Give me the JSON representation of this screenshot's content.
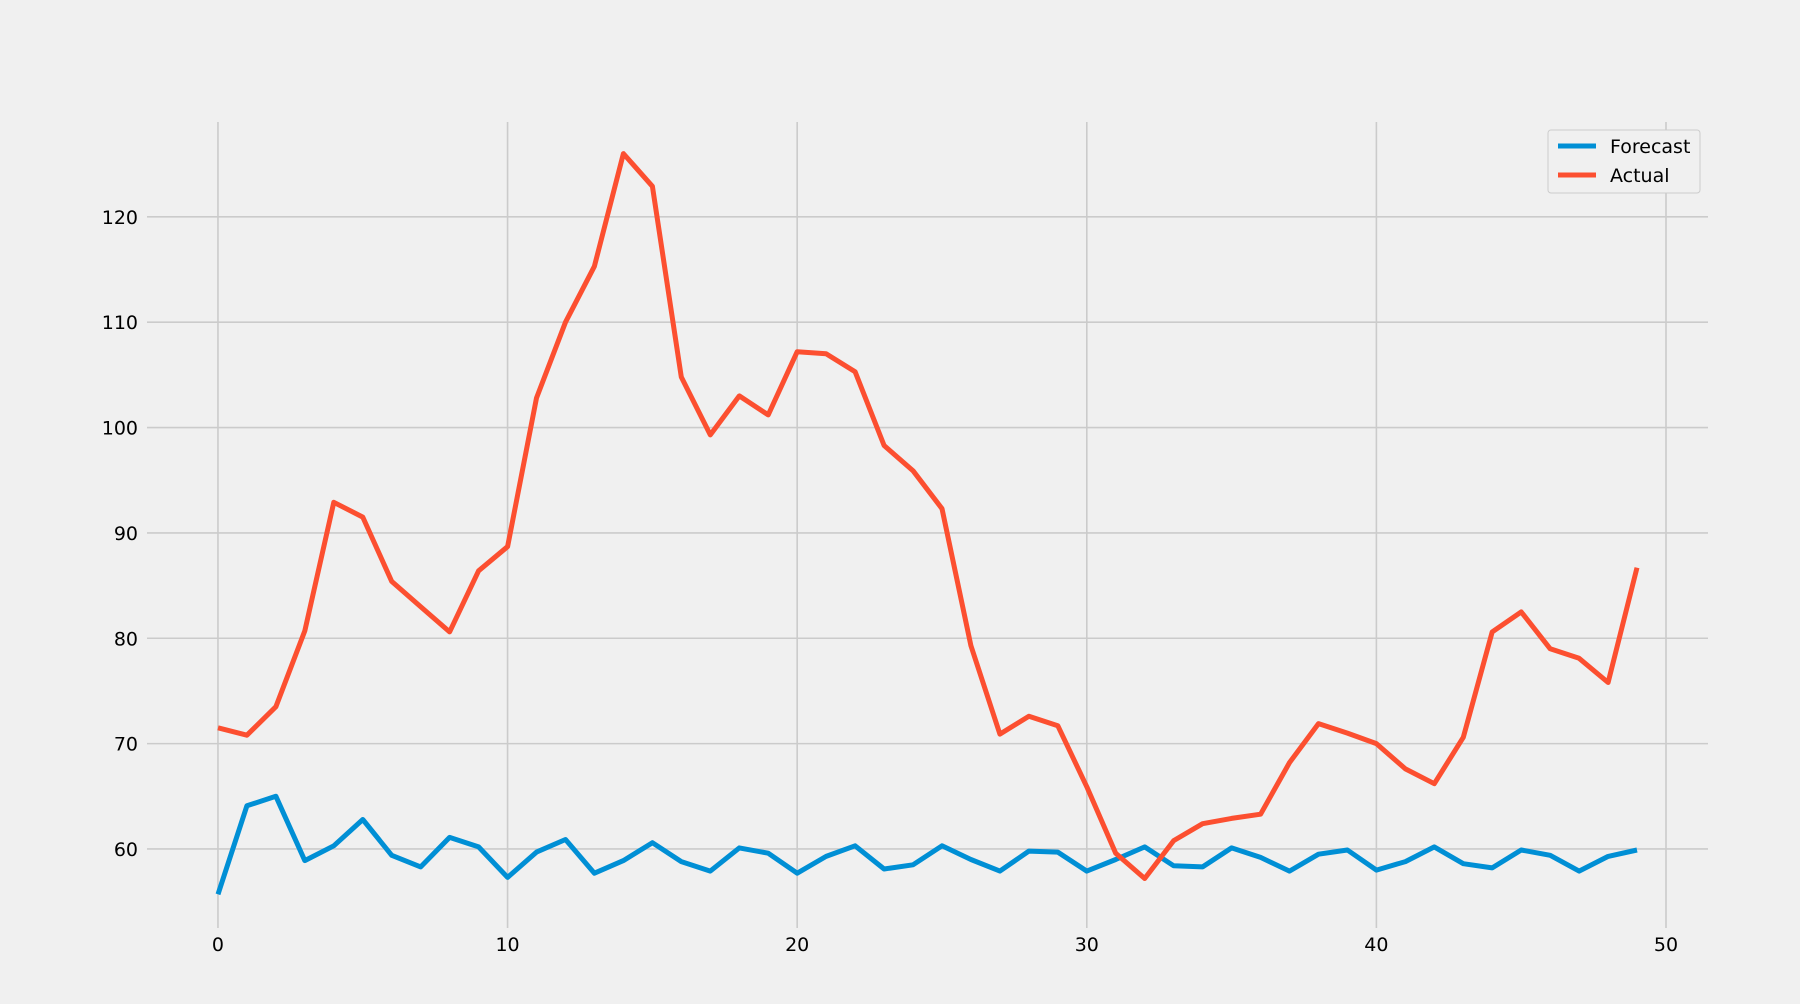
{
  "chart_data": {
    "type": "line",
    "title": "",
    "xlabel": "",
    "ylabel": "",
    "xlim": [
      -2.45,
      51.45
    ],
    "ylim": [
      52.5,
      129.0
    ],
    "x_ticks": [
      0,
      10,
      20,
      30,
      40,
      50
    ],
    "y_ticks": [
      60,
      70,
      80,
      90,
      100,
      110,
      120
    ],
    "grid": true,
    "legend_position": "top-right",
    "background": "#f0f0f0",
    "x": [
      0,
      1,
      2,
      3,
      4,
      5,
      6,
      7,
      8,
      9,
      10,
      11,
      12,
      13,
      14,
      15,
      16,
      17,
      18,
      19,
      20,
      21,
      22,
      23,
      24,
      25,
      26,
      27,
      28,
      29,
      30,
      31,
      32,
      33,
      34,
      35,
      36,
      37,
      38,
      39,
      40,
      41,
      42,
      43,
      44,
      45,
      46,
      47,
      48,
      49
    ],
    "series": [
      {
        "name": "Forecast",
        "color": "#008fd5",
        "values": [
          55.7,
          64.1,
          65.0,
          58.9,
          60.3,
          62.8,
          59.4,
          58.3,
          61.1,
          60.2,
          57.3,
          59.7,
          60.9,
          57.7,
          58.9,
          60.6,
          58.8,
          57.9,
          60.1,
          59.6,
          57.7,
          59.3,
          60.3,
          58.1,
          58.5,
          60.3,
          59.0,
          57.9,
          59.8,
          59.7,
          57.9,
          59.0,
          60.2,
          58.4,
          58.3,
          60.1,
          59.2,
          57.9,
          59.5,
          59.9,
          58.0,
          58.8,
          60.2,
          58.6,
          58.2,
          59.9,
          59.4,
          57.9,
          59.3,
          59.9
        ]
      },
      {
        "name": "Actual",
        "color": "#fc4f30",
        "values": [
          71.5,
          70.8,
          73.5,
          80.7,
          92.9,
          91.5,
          85.4,
          83.0,
          80.6,
          86.4,
          88.7,
          102.8,
          110.0,
          115.3,
          126.0,
          122.9,
          104.8,
          99.3,
          103.0,
          101.2,
          107.2,
          107.0,
          105.3,
          98.3,
          95.9,
          92.3,
          79.3,
          70.9,
          72.6,
          71.7,
          65.9,
          59.6,
          57.2,
          60.8,
          62.4,
          62.9,
          63.3,
          68.2,
          71.9,
          71.0,
          70.0,
          67.6,
          66.2,
          70.6,
          80.6,
          82.5,
          79.0,
          78.1,
          75.8,
          86.7
        ]
      }
    ]
  }
}
